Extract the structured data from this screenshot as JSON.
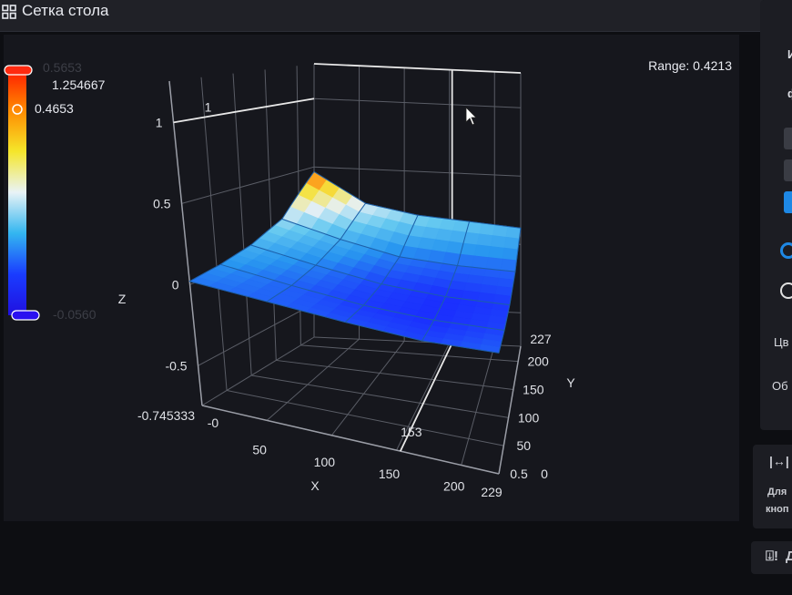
{
  "header": {
    "title": "Сетка стола",
    "icon": "grid-icon"
  },
  "range_label": "Range: 0.4213",
  "colorbar": {
    "max_faded": "0.5653",
    "max_label": "1.254667",
    "current": "0.4653",
    "min_faded": "-0.0560",
    "colors": [
      "#ff1a00",
      "#ff8a00",
      "#f5e62a",
      "#e9f3f6",
      "#33b6f0",
      "#1a3cff",
      "#2010e0"
    ]
  },
  "sidebar": {
    "partial_texts": [
      "И",
      "ф",
      "Цв",
      "Об",
      "Для",
      "кноп",
      "Д"
    ],
    "active_button_color": "#1e88e5"
  },
  "chart_data": {
    "type": "surface3d",
    "xlabel": "X",
    "ylabel": "Y",
    "zlabel": "Z",
    "x": [
      0,
      57,
      115,
      172,
      229
    ],
    "y": [
      0,
      57,
      113,
      170,
      227
    ],
    "z": [
      [
        0.02,
        0.0,
        -0.02,
        -0.03,
        0.0
      ],
      [
        0.05,
        0.0,
        -0.04,
        -0.05,
        -0.03
      ],
      [
        0.1,
        0.03,
        -0.03,
        -0.05,
        -0.04
      ],
      [
        0.2,
        0.1,
        0.02,
        0.0,
        0.0
      ],
      [
        0.4653,
        0.25,
        0.18,
        0.15,
        0.12
      ]
    ],
    "xlim": [
      0,
      229
    ],
    "ylim": [
      0,
      227
    ],
    "zlim": [
      -0.745333,
      1.254667
    ],
    "x_ticks": [
      "-0",
      "50",
      "100",
      "150",
      "200",
      "229"
    ],
    "y_ticks": [
      "0.5",
      "50",
      "100",
      "150",
      "200",
      "227"
    ],
    "y_tick_zero": "0",
    "z_ticks": [
      "-0.745333",
      "-0.5",
      "0",
      "0.5",
      "1"
    ],
    "z_tick_marker": "1",
    "crosshair_label": "153",
    "grid": true
  }
}
